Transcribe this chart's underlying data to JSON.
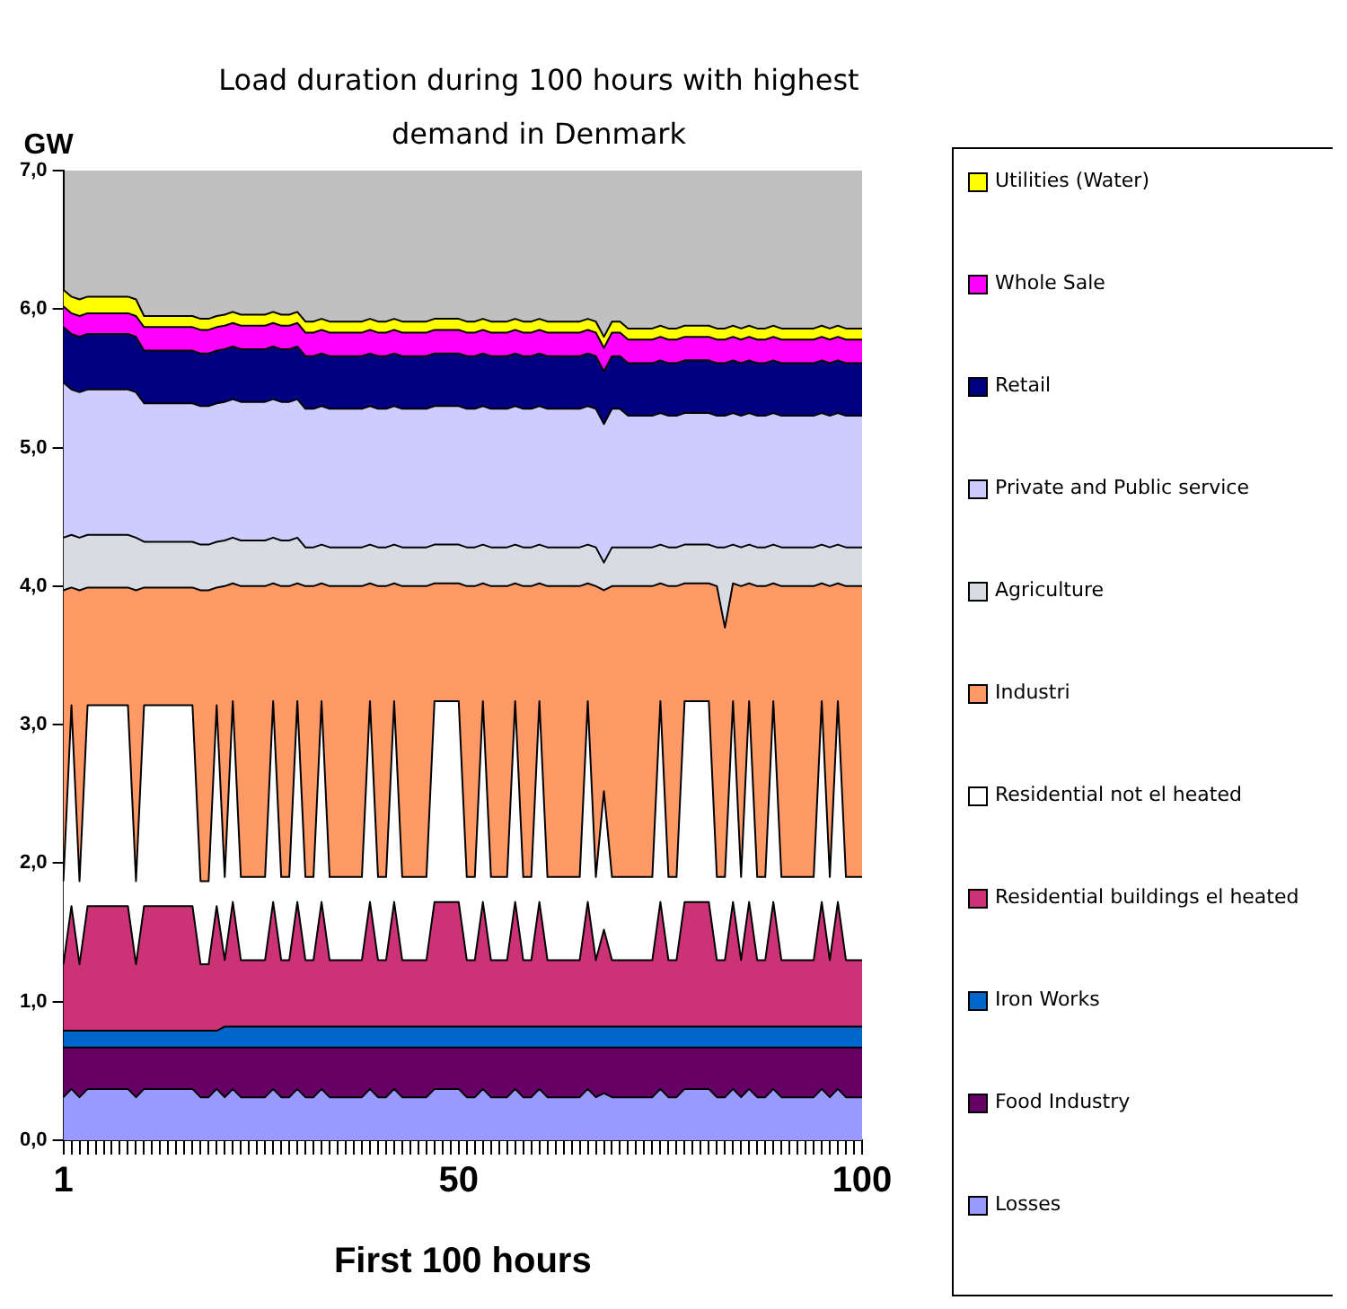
{
  "chart_data": {
    "type": "area",
    "stacked": true,
    "title": "Load duration during 100 hours with highest demand in Denmark",
    "ylabel": "GW",
    "xlabel": "First 100 hours",
    "legend": "right",
    "categories": [
      "1",
      null,
      null,
      null,
      null,
      null,
      null,
      null,
      null,
      null,
      null,
      null,
      null,
      null,
      null,
      null,
      null,
      null,
      null,
      null,
      null,
      null,
      null,
      null,
      null,
      null,
      null,
      null,
      null,
      null,
      null,
      null,
      null,
      null,
      null,
      null,
      null,
      null,
      null,
      null,
      null,
      null,
      null,
      null,
      null,
      null,
      null,
      null,
      null,
      "50",
      null,
      null,
      null,
      null,
      null,
      null,
      null,
      null,
      null,
      null,
      null,
      null,
      null,
      null,
      null,
      null,
      null,
      null,
      null,
      null,
      null,
      null,
      null,
      null,
      null,
      null,
      null,
      null,
      null,
      null,
      null,
      null,
      null,
      null,
      null,
      null,
      null,
      null,
      null,
      null,
      null,
      null,
      null,
      null,
      null,
      null,
      null,
      null,
      null,
      "100"
    ],
    "ylim": [
      0,
      7
    ],
    "yticks": [
      {
        "value": 0,
        "label": "0,0"
      },
      {
        "value": 1,
        "label": "1,0"
      },
      {
        "value": 2,
        "label": "2,0"
      },
      {
        "value": 3,
        "label": "3,0"
      },
      {
        "value": 4,
        "label": "4,0"
      },
      {
        "value": 5,
        "label": "5,0"
      },
      {
        "value": 6,
        "label": "6,0"
      },
      {
        "value": 7,
        "label": "7,0"
      }
    ],
    "series": [
      {
        "name": "Losses",
        "color": "#9999ff",
        "values": [
          0.31,
          0.37,
          0.31,
          0.37,
          0.37,
          0.37,
          0.37,
          0.37,
          0.37,
          0.31,
          0.37,
          0.37,
          0.37,
          0.37,
          0.37,
          0.37,
          0.37,
          0.31,
          0.31,
          0.37,
          0.31,
          0.37,
          0.31,
          0.31,
          0.31,
          0.31,
          0.37,
          0.31,
          0.31,
          0.37,
          0.31,
          0.31,
          0.37,
          0.31,
          0.31,
          0.31,
          0.31,
          0.31,
          0.37,
          0.31,
          0.31,
          0.37,
          0.31,
          0.31,
          0.31,
          0.31,
          0.37,
          0.37,
          0.37,
          0.37,
          0.31,
          0.31,
          0.37,
          0.31,
          0.31,
          0.31,
          0.37,
          0.31,
          0.31,
          0.37,
          0.31,
          0.31,
          0.31,
          0.31,
          0.31,
          0.37,
          0.31,
          0.34,
          0.31,
          0.31,
          0.31,
          0.31,
          0.31,
          0.31,
          0.37,
          0.31,
          0.31,
          0.37,
          0.37,
          0.37,
          0.37,
          0.31,
          0.31,
          0.37,
          0.31,
          0.37,
          0.31,
          0.31,
          0.37,
          0.31,
          0.31,
          0.31,
          0.31,
          0.31,
          0.37,
          0.31,
          0.37,
          0.31,
          0.31,
          0.31
        ]
      },
      {
        "name": "Food Industry",
        "color": "#660066",
        "values": [
          0.36,
          0.3,
          0.36,
          0.3,
          0.3,
          0.3,
          0.3,
          0.3,
          0.3,
          0.36,
          0.3,
          0.3,
          0.3,
          0.3,
          0.3,
          0.3,
          0.3,
          0.36,
          0.36,
          0.3,
          0.36,
          0.3,
          0.36,
          0.36,
          0.36,
          0.36,
          0.3,
          0.36,
          0.36,
          0.3,
          0.36,
          0.36,
          0.3,
          0.36,
          0.36,
          0.36,
          0.36,
          0.36,
          0.3,
          0.36,
          0.36,
          0.3,
          0.36,
          0.36,
          0.36,
          0.36,
          0.3,
          0.3,
          0.3,
          0.3,
          0.36,
          0.36,
          0.3,
          0.36,
          0.36,
          0.36,
          0.3,
          0.36,
          0.36,
          0.3,
          0.36,
          0.36,
          0.36,
          0.36,
          0.36,
          0.3,
          0.36,
          0.33,
          0.36,
          0.36,
          0.36,
          0.36,
          0.36,
          0.36,
          0.3,
          0.36,
          0.36,
          0.3,
          0.3,
          0.3,
          0.3,
          0.36,
          0.36,
          0.3,
          0.36,
          0.3,
          0.36,
          0.36,
          0.3,
          0.36,
          0.36,
          0.36,
          0.36,
          0.36,
          0.3,
          0.36,
          0.3,
          0.36,
          0.36,
          0.36
        ]
      },
      {
        "name": "Iron Works",
        "color": "#0066cc",
        "values": [
          0.12,
          0.12,
          0.12,
          0.12,
          0.12,
          0.12,
          0.12,
          0.12,
          0.12,
          0.12,
          0.12,
          0.12,
          0.12,
          0.12,
          0.12,
          0.12,
          0.12,
          0.12,
          0.12,
          0.12,
          0.15,
          0.15,
          0.15,
          0.15,
          0.15,
          0.15,
          0.15,
          0.15,
          0.15,
          0.15,
          0.15,
          0.15,
          0.15,
          0.15,
          0.15,
          0.15,
          0.15,
          0.15,
          0.15,
          0.15,
          0.15,
          0.15,
          0.15,
          0.15,
          0.15,
          0.15,
          0.15,
          0.15,
          0.15,
          0.15,
          0.15,
          0.15,
          0.15,
          0.15,
          0.15,
          0.15,
          0.15,
          0.15,
          0.15,
          0.15,
          0.15,
          0.15,
          0.15,
          0.15,
          0.15,
          0.15,
          0.15,
          0.15,
          0.15,
          0.15,
          0.15,
          0.15,
          0.15,
          0.15,
          0.15,
          0.15,
          0.15,
          0.15,
          0.15,
          0.15,
          0.15,
          0.15,
          0.15,
          0.15,
          0.15,
          0.15,
          0.15,
          0.15,
          0.15,
          0.15,
          0.15,
          0.15,
          0.15,
          0.15,
          0.15,
          0.15,
          0.15,
          0.15,
          0.15,
          0.15
        ]
      },
      {
        "name": "Residential buildings el heated",
        "color": "#cc3377",
        "values": [
          0.48,
          0.9,
          0.48,
          0.9,
          0.9,
          0.9,
          0.9,
          0.9,
          0.9,
          0.48,
          0.9,
          0.9,
          0.9,
          0.9,
          0.9,
          0.9,
          0.9,
          0.48,
          0.48,
          0.9,
          0.48,
          0.9,
          0.48,
          0.48,
          0.48,
          0.48,
          0.9,
          0.48,
          0.48,
          0.9,
          0.48,
          0.48,
          0.9,
          0.48,
          0.48,
          0.48,
          0.48,
          0.48,
          0.9,
          0.48,
          0.48,
          0.9,
          0.48,
          0.48,
          0.48,
          0.48,
          0.9,
          0.9,
          0.9,
          0.9,
          0.48,
          0.48,
          0.9,
          0.48,
          0.48,
          0.48,
          0.9,
          0.48,
          0.48,
          0.9,
          0.48,
          0.48,
          0.48,
          0.48,
          0.48,
          0.9,
          0.48,
          0.7,
          0.48,
          0.48,
          0.48,
          0.48,
          0.48,
          0.48,
          0.9,
          0.48,
          0.48,
          0.9,
          0.9,
          0.9,
          0.9,
          0.48,
          0.48,
          0.9,
          0.48,
          0.9,
          0.48,
          0.48,
          0.9,
          0.48,
          0.48,
          0.48,
          0.48,
          0.48,
          0.9,
          0.48,
          0.9,
          0.48,
          0.48,
          0.48
        ]
      },
      {
        "name": "Residential not el heated",
        "color": "#ffffff",
        "values": [
          0.6,
          1.45,
          0.6,
          1.45,
          1.45,
          1.45,
          1.45,
          1.45,
          1.45,
          0.6,
          1.45,
          1.45,
          1.45,
          1.45,
          1.45,
          1.45,
          1.45,
          0.6,
          0.6,
          1.45,
          0.6,
          1.45,
          0.6,
          0.6,
          0.6,
          0.6,
          1.45,
          0.6,
          0.6,
          1.45,
          0.6,
          0.6,
          1.45,
          0.6,
          0.6,
          0.6,
          0.6,
          0.6,
          1.45,
          0.6,
          0.6,
          1.45,
          0.6,
          0.6,
          0.6,
          0.6,
          1.45,
          1.45,
          1.45,
          1.45,
          0.6,
          0.6,
          1.45,
          0.6,
          0.6,
          0.6,
          1.45,
          0.6,
          0.6,
          1.45,
          0.6,
          0.6,
          0.6,
          0.6,
          0.6,
          1.45,
          0.6,
          1.0,
          0.6,
          0.6,
          0.6,
          0.6,
          0.6,
          0.6,
          1.45,
          0.6,
          0.6,
          1.45,
          1.45,
          1.45,
          1.45,
          0.6,
          0.6,
          1.45,
          0.6,
          1.45,
          0.6,
          0.6,
          1.45,
          0.6,
          0.6,
          0.6,
          0.6,
          0.6,
          1.45,
          0.6,
          1.45,
          0.6,
          0.6,
          0.6
        ]
      },
      {
        "name": "Industri",
        "color": "#ff9966",
        "values": [
          2.1,
          0.85,
          2.1,
          0.85,
          0.85,
          0.85,
          0.85,
          0.85,
          0.85,
          2.1,
          0.85,
          0.85,
          0.85,
          0.85,
          0.85,
          0.85,
          0.85,
          2.1,
          2.1,
          0.85,
          2.1,
          0.85,
          2.1,
          2.1,
          2.1,
          2.1,
          0.85,
          2.1,
          2.1,
          0.85,
          2.1,
          2.1,
          0.85,
          2.1,
          2.1,
          2.1,
          2.1,
          2.1,
          0.85,
          2.1,
          2.1,
          0.85,
          2.1,
          2.1,
          2.1,
          2.1,
          0.85,
          0.85,
          0.85,
          0.85,
          2.1,
          2.1,
          0.85,
          2.1,
          2.1,
          2.1,
          0.85,
          2.1,
          2.1,
          0.85,
          2.1,
          2.1,
          2.1,
          2.1,
          2.1,
          0.85,
          2.1,
          1.45,
          2.1,
          2.1,
          2.1,
          2.1,
          2.1,
          2.1,
          0.85,
          2.1,
          2.1,
          0.85,
          0.85,
          0.85,
          0.85,
          2.1,
          1.8,
          0.85,
          2.1,
          0.85,
          2.1,
          2.1,
          0.85,
          2.1,
          2.1,
          2.1,
          2.1,
          2.1,
          0.85,
          2.1,
          0.85,
          2.1,
          2.1,
          2.1
        ]
      },
      {
        "name": "Agriculture",
        "color": "#d8dce2",
        "values": [
          0.38,
          0.38,
          0.38,
          0.38,
          0.38,
          0.38,
          0.38,
          0.38,
          0.38,
          0.38,
          0.33,
          0.33,
          0.33,
          0.33,
          0.33,
          0.33,
          0.33,
          0.33,
          0.33,
          0.33,
          0.33,
          0.33,
          0.33,
          0.33,
          0.33,
          0.33,
          0.33,
          0.33,
          0.33,
          0.33,
          0.28,
          0.28,
          0.28,
          0.28,
          0.28,
          0.28,
          0.28,
          0.28,
          0.28,
          0.28,
          0.28,
          0.28,
          0.28,
          0.28,
          0.28,
          0.28,
          0.28,
          0.28,
          0.28,
          0.28,
          0.28,
          0.28,
          0.28,
          0.28,
          0.28,
          0.28,
          0.28,
          0.28,
          0.28,
          0.28,
          0.28,
          0.28,
          0.28,
          0.28,
          0.28,
          0.28,
          0.28,
          0.2,
          0.28,
          0.28,
          0.28,
          0.28,
          0.28,
          0.28,
          0.28,
          0.28,
          0.28,
          0.28,
          0.28,
          0.28,
          0.28,
          0.28,
          0.58,
          0.28,
          0.28,
          0.28,
          0.28,
          0.28,
          0.28,
          0.28,
          0.28,
          0.28,
          0.28,
          0.28,
          0.28,
          0.28,
          0.28,
          0.28,
          0.28,
          0.28
        ]
      },
      {
        "name": "Private and Public service",
        "color": "#ccccff",
        "values": [
          1.12,
          1.05,
          1.05,
          1.05,
          1.05,
          1.05,
          1.05,
          1.05,
          1.05,
          1.05,
          1.0,
          1.0,
          1.0,
          1.0,
          1.0,
          1.0,
          1.0,
          1.0,
          1.0,
          1.0,
          1.0,
          1.0,
          1.0,
          1.0,
          1.0,
          1.0,
          1.0,
          1.0,
          1.0,
          1.0,
          1.0,
          1.0,
          1.0,
          1.0,
          1.0,
          1.0,
          1.0,
          1.0,
          1.0,
          1.0,
          1.0,
          1.0,
          1.0,
          1.0,
          1.0,
          1.0,
          1.0,
          1.0,
          1.0,
          1.0,
          1.0,
          1.0,
          1.0,
          1.0,
          1.0,
          1.0,
          1.0,
          1.0,
          1.0,
          1.0,
          1.0,
          1.0,
          1.0,
          1.0,
          1.0,
          1.0,
          1.0,
          1.0,
          1.0,
          1.0,
          0.95,
          0.95,
          0.95,
          0.95,
          0.95,
          0.95,
          0.95,
          0.95,
          0.95,
          0.95,
          0.95,
          0.95,
          0.95,
          0.95,
          0.95,
          0.95,
          0.95,
          0.95,
          0.95,
          0.95,
          0.95,
          0.95,
          0.95,
          0.95,
          0.95,
          0.95,
          0.95,
          0.95,
          0.95,
          0.95
        ]
      },
      {
        "name": "Retail",
        "color": "#000080",
        "values": [
          0.4,
          0.4,
          0.4,
          0.4,
          0.4,
          0.4,
          0.4,
          0.4,
          0.4,
          0.4,
          0.38,
          0.38,
          0.38,
          0.38,
          0.38,
          0.38,
          0.38,
          0.38,
          0.38,
          0.38,
          0.38,
          0.38,
          0.38,
          0.38,
          0.38,
          0.38,
          0.38,
          0.38,
          0.38,
          0.38,
          0.38,
          0.38,
          0.38,
          0.38,
          0.38,
          0.38,
          0.38,
          0.38,
          0.38,
          0.38,
          0.38,
          0.38,
          0.38,
          0.38,
          0.38,
          0.38,
          0.38,
          0.38,
          0.38,
          0.38,
          0.38,
          0.38,
          0.38,
          0.38,
          0.38,
          0.38,
          0.38,
          0.38,
          0.38,
          0.38,
          0.38,
          0.38,
          0.38,
          0.38,
          0.38,
          0.38,
          0.38,
          0.38,
          0.38,
          0.38,
          0.38,
          0.38,
          0.38,
          0.38,
          0.38,
          0.38,
          0.38,
          0.38,
          0.38,
          0.38,
          0.38,
          0.38,
          0.38,
          0.38,
          0.38,
          0.38,
          0.38,
          0.38,
          0.38,
          0.38,
          0.38,
          0.38,
          0.38,
          0.38,
          0.38,
          0.38,
          0.38,
          0.38,
          0.38,
          0.38
        ]
      },
      {
        "name": "Whole Sale",
        "color": "#ff00ff",
        "values": [
          0.15,
          0.15,
          0.15,
          0.15,
          0.15,
          0.15,
          0.15,
          0.15,
          0.15,
          0.15,
          0.17,
          0.17,
          0.17,
          0.17,
          0.17,
          0.17,
          0.17,
          0.17,
          0.17,
          0.17,
          0.17,
          0.17,
          0.17,
          0.17,
          0.17,
          0.17,
          0.17,
          0.17,
          0.17,
          0.17,
          0.17,
          0.17,
          0.17,
          0.17,
          0.17,
          0.17,
          0.17,
          0.17,
          0.17,
          0.17,
          0.17,
          0.17,
          0.17,
          0.17,
          0.17,
          0.17,
          0.17,
          0.17,
          0.17,
          0.17,
          0.17,
          0.17,
          0.17,
          0.17,
          0.17,
          0.17,
          0.17,
          0.17,
          0.17,
          0.17,
          0.17,
          0.17,
          0.17,
          0.17,
          0.17,
          0.17,
          0.17,
          0.17,
          0.17,
          0.17,
          0.17,
          0.17,
          0.17,
          0.17,
          0.17,
          0.17,
          0.17,
          0.17,
          0.17,
          0.17,
          0.17,
          0.17,
          0.17,
          0.17,
          0.17,
          0.17,
          0.17,
          0.17,
          0.17,
          0.17,
          0.17,
          0.17,
          0.17,
          0.17,
          0.17,
          0.17,
          0.17,
          0.17,
          0.17,
          0.17
        ]
      },
      {
        "name": "Utilities (Water)",
        "color": "#ffff00",
        "values": [
          0.12,
          0.12,
          0.12,
          0.12,
          0.12,
          0.12,
          0.12,
          0.12,
          0.12,
          0.12,
          0.08,
          0.08,
          0.08,
          0.08,
          0.08,
          0.08,
          0.08,
          0.08,
          0.08,
          0.08,
          0.08,
          0.08,
          0.08,
          0.08,
          0.08,
          0.08,
          0.08,
          0.08,
          0.08,
          0.08,
          0.08,
          0.08,
          0.08,
          0.08,
          0.08,
          0.08,
          0.08,
          0.08,
          0.08,
          0.08,
          0.08,
          0.08,
          0.08,
          0.08,
          0.08,
          0.08,
          0.08,
          0.08,
          0.08,
          0.08,
          0.08,
          0.08,
          0.08,
          0.08,
          0.08,
          0.08,
          0.08,
          0.08,
          0.08,
          0.08,
          0.08,
          0.08,
          0.08,
          0.08,
          0.08,
          0.08,
          0.08,
          0.08,
          0.08,
          0.08,
          0.08,
          0.08,
          0.08,
          0.08,
          0.08,
          0.08,
          0.08,
          0.08,
          0.08,
          0.08,
          0.08,
          0.08,
          0.08,
          0.08,
          0.08,
          0.08,
          0.08,
          0.08,
          0.08,
          0.08,
          0.08,
          0.08,
          0.08,
          0.08,
          0.08,
          0.08,
          0.08,
          0.08,
          0.08,
          0.08
        ]
      }
    ]
  }
}
